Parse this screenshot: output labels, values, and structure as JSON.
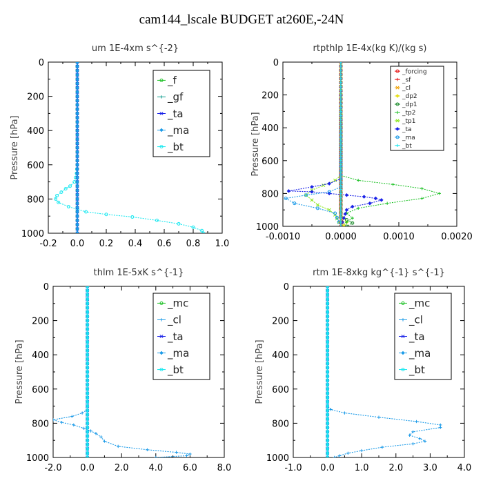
{
  "page": {
    "title": "cam144_lscale  BUDGET at260E,-24N"
  },
  "colors": {
    "green": "#22c22a",
    "teal": "#0a9a8c",
    "blue": "#1a22e8",
    "cyan_blue": "#1a9ae8",
    "cyan": "#1ae8f0",
    "red": "#e81a1a",
    "orange": "#f0a000",
    "yellow": "#e8e01a",
    "dkgreen": "#1a8a2a",
    "lime": "#8ae81a"
  },
  "chart_data": [
    {
      "id": "um",
      "type": "line",
      "title": "um   1E-4xm s^{-2}",
      "ylabel": "Pressure [hPa]",
      "xlabel": "",
      "xlim": [
        -0.2,
        1.0
      ],
      "ylim": [
        1000,
        0
      ],
      "xticks": [
        -0.2,
        0.0,
        0.2,
        0.4,
        0.6,
        0.8,
        1.0
      ],
      "xtick_labels": [
        "-0.2",
        "0.0",
        "0.2",
        "0.4",
        "0.6",
        "0.8",
        "1.0"
      ],
      "yticks": [
        0,
        200,
        400,
        600,
        800,
        1000
      ],
      "ytick_labels": [
        "0",
        "200",
        "400",
        "600",
        "800",
        "1000"
      ],
      "legend_position": "top-right",
      "series": [
        {
          "name": "_f",
          "color_key": "green",
          "points": [
            [
              0,
              0
            ],
            [
              0,
              1000
            ]
          ]
        },
        {
          "name": "_gf",
          "color_key": "teal",
          "points": [
            [
              0,
              0
            ],
            [
              0,
              1000
            ]
          ]
        },
        {
          "name": "_ta",
          "color_key": "blue",
          "points": [
            [
              0,
              0
            ],
            [
              0,
              1000
            ]
          ]
        },
        {
          "name": "_ma",
          "color_key": "cyan_blue",
          "points": [
            [
              0,
              0
            ],
            [
              0,
              1000
            ]
          ]
        },
        {
          "name": "_bt",
          "color_key": "cyan",
          "points": [
            [
              0,
              0
            ],
            [
              0,
              600
            ],
            [
              -0.005,
              650
            ],
            [
              -0.02,
              700
            ],
            [
              -0.05,
              725
            ],
            [
              -0.08,
              740
            ],
            [
              -0.11,
              760
            ],
            [
              -0.14,
              780
            ],
            [
              -0.15,
              800
            ],
            [
              -0.13,
              820
            ],
            [
              -0.06,
              845
            ],
            [
              0.0,
              860
            ],
            [
              0.06,
              875
            ],
            [
              0.2,
              890
            ],
            [
              0.38,
              905
            ],
            [
              0.55,
              925
            ],
            [
              0.7,
              945
            ],
            [
              0.8,
              965
            ],
            [
              0.86,
              985
            ],
            [
              0.87,
              1000
            ]
          ]
        }
      ]
    },
    {
      "id": "rtpthlp",
      "type": "line",
      "title": "rtpthlp   1E-4x(kg K)/(kg s)",
      "ylabel": "Pressure [hPa]",
      "xlabel": "",
      "xlim": [
        -0.001,
        0.002
      ],
      "ylim": [
        1000,
        0
      ],
      "xticks": [
        -0.001,
        0.0,
        0.001,
        0.002
      ],
      "xtick_labels": [
        "-0.0010",
        "0.0000",
        "0.0010",
        "0.0020"
      ],
      "yticks": [
        0,
        200,
        400,
        600,
        800,
        1000
      ],
      "ytick_labels": [
        "0",
        "200",
        "400",
        "600",
        "800",
        "1000"
      ],
      "legend_position": "top-right",
      "series": [
        {
          "name": "_forcing",
          "color_key": "red",
          "points": [
            [
              0,
              0
            ],
            [
              0,
              1000
            ]
          ]
        },
        {
          "name": "_sf",
          "color_key": "red",
          "points": [
            [
              0,
              0
            ],
            [
              0,
              1000
            ]
          ]
        },
        {
          "name": "_cl",
          "color_key": "orange",
          "points": [
            [
              0,
              0
            ],
            [
              0,
              940
            ],
            [
              2e-05,
              960
            ],
            [
              3e-05,
              980
            ],
            [
              2e-05,
              1000
            ]
          ]
        },
        {
          "name": "_dp2",
          "color_key": "yellow",
          "points": [
            [
              0,
              0
            ],
            [
              0,
              920
            ],
            [
              5e-05,
              950
            ],
            [
              0.0001,
              975
            ],
            [
              5e-05,
              1000
            ]
          ]
        },
        {
          "name": "_dp1",
          "color_key": "dkgreen",
          "points": [
            [
              0,
              0
            ],
            [
              0,
              940
            ],
            [
              0.0001,
              960
            ],
            [
              0.0002,
              980
            ],
            [
              0.0001,
              1000
            ]
          ]
        },
        {
          "name": "_tp2",
          "color_key": "green",
          "points": [
            [
              0,
              0
            ],
            [
              0,
              690
            ],
            [
              0.0003,
              720
            ],
            [
              0.0009,
              745
            ],
            [
              0.0014,
              770
            ],
            [
              0.0017,
              800
            ],
            [
              0.0014,
              830
            ],
            [
              0.0008,
              860
            ],
            [
              0.0003,
              890
            ],
            [
              0.0001,
              920
            ],
            [
              0.0002,
              950
            ],
            [
              0.0001,
              975
            ],
            [
              0,
              1000
            ]
          ]
        },
        {
          "name": "_tp1",
          "color_key": "lime",
          "points": [
            [
              0,
              0
            ],
            [
              0,
              690
            ],
            [
              -0.0001,
              720
            ],
            [
              -0.0003,
              750
            ],
            [
              -0.0005,
              780
            ],
            [
              -0.0006,
              810
            ],
            [
              -0.0005,
              840
            ],
            [
              -0.0004,
              870
            ],
            [
              -0.0002,
              900
            ],
            [
              -0.0001,
              930
            ],
            [
              0,
              1000
            ]
          ]
        },
        {
          "name": "_ta",
          "color_key": "blue",
          "points": [
            [
              0,
              0
            ],
            [
              0,
              710
            ],
            [
              -0.0002,
              740
            ],
            [
              -0.0005,
              760
            ],
            [
              -0.0009,
              785
            ],
            [
              -0.0005,
              790
            ],
            [
              -0.0002,
              800
            ],
            [
              0.0001,
              810
            ],
            [
              0.0004,
              820
            ],
            [
              0.0006,
              830
            ],
            [
              0.0007,
              840
            ],
            [
              0.0005,
              860
            ],
            [
              0.0002,
              880
            ],
            [
              0.0001,
              900
            ],
            [
              0,
              1000
            ]
          ]
        },
        {
          "name": "_ma",
          "color_key": "cyan_blue",
          "points": [
            [
              0,
              0
            ],
            [
              0,
              760
            ],
            [
              -0.0002,
              790
            ],
            [
              -0.0006,
              810
            ],
            [
              -0.00095,
              830
            ],
            [
              -0.0008,
              860
            ],
            [
              -0.0004,
              890
            ],
            [
              -0.0001,
              920
            ],
            [
              0,
              1000
            ]
          ]
        },
        {
          "name": "_bt",
          "color_key": "cyan",
          "points": [
            [
              0,
              0
            ],
            [
              0,
              1000
            ]
          ]
        }
      ]
    },
    {
      "id": "thlm",
      "type": "line",
      "title": "thlm   1E-5xK s^{-1}",
      "ylabel": "Pressure [hPa]",
      "xlabel": "",
      "xlim": [
        -2.0,
        8.0
      ],
      "ylim": [
        1000,
        0
      ],
      "xticks": [
        -2.0,
        0.0,
        2.0,
        4.0,
        6.0,
        8.0
      ],
      "xtick_labels": [
        "-2.0",
        "0.0",
        "2.0",
        "4.0",
        "6.0",
        "8.0"
      ],
      "yticks": [
        0,
        200,
        400,
        600,
        800,
        1000
      ],
      "ytick_labels": [
        "0",
        "200",
        "400",
        "600",
        "800",
        "1000"
      ],
      "legend_position": "top-right",
      "series": [
        {
          "name": "_mc",
          "color_key": "green",
          "points": [
            [
              0,
              0
            ],
            [
              0,
              1000
            ]
          ]
        },
        {
          "name": "_cl",
          "color_key": "cyan_blue",
          "points": [
            [
              0,
              0
            ],
            [
              0,
              720
            ],
            [
              -0.3,
              740
            ],
            [
              -0.9,
              760
            ],
            [
              -2.0,
              780
            ],
            [
              -1.5,
              795
            ],
            [
              -0.8,
              810
            ],
            [
              -0.2,
              830
            ],
            [
              0.2,
              845
            ],
            [
              0.5,
              860
            ],
            [
              0.8,
              880
            ],
            [
              1.0,
              905
            ],
            [
              1.8,
              935
            ],
            [
              3.5,
              955
            ],
            [
              5.2,
              970
            ],
            [
              6.0,
              980
            ],
            [
              5.8,
              990
            ],
            [
              4.0,
              1000
            ]
          ]
        },
        {
          "name": "_ta",
          "color_key": "blue",
          "points": [
            [
              0,
              0
            ],
            [
              0,
              1000
            ]
          ]
        },
        {
          "name": "_ma",
          "color_key": "cyan_blue",
          "points": [
            [
              0,
              0
            ],
            [
              0,
              1000
            ]
          ]
        },
        {
          "name": "_bt",
          "color_key": "cyan",
          "points": [
            [
              0,
              0
            ],
            [
              0,
              1000
            ]
          ]
        }
      ]
    },
    {
      "id": "rtm",
      "type": "line",
      "title": "rtm   1E-8xkg kg^{-1} s^{-1}",
      "ylabel": "Pressure [hPa]",
      "xlabel": "",
      "xlim": [
        -1.0,
        4.0
      ],
      "ylim": [
        1000,
        0
      ],
      "xticks": [
        -1.0,
        0.0,
        1.0,
        2.0,
        3.0,
        4.0
      ],
      "xtick_labels": [
        "-1.0",
        "0.0",
        "1.0",
        "2.0",
        "3.0",
        "4.0"
      ],
      "yticks": [
        0,
        200,
        400,
        600,
        800,
        1000
      ],
      "ytick_labels": [
        "0",
        "200",
        "400",
        "600",
        "800",
        "1000"
      ],
      "legend_position": "top-right",
      "series": [
        {
          "name": "_mc",
          "color_key": "green",
          "points": [
            [
              0,
              0
            ],
            [
              0,
              1000
            ]
          ]
        },
        {
          "name": "_cl",
          "color_key": "cyan_blue",
          "points": [
            [
              0,
              0
            ],
            [
              0,
              700
            ],
            [
              0.1,
              720
            ],
            [
              0.5,
              740
            ],
            [
              1.5,
              765
            ],
            [
              2.6,
              790
            ],
            [
              3.3,
              810
            ],
            [
              3.3,
              825
            ],
            [
              2.5,
              850
            ],
            [
              2.4,
              870
            ],
            [
              2.7,
              890
            ],
            [
              2.85,
              905
            ],
            [
              2.5,
              920
            ],
            [
              1.6,
              940
            ],
            [
              1.0,
              960
            ],
            [
              0.6,
              975
            ],
            [
              0.35,
              990
            ],
            [
              0.2,
              1000
            ]
          ]
        },
        {
          "name": "_ta",
          "color_key": "blue",
          "points": [
            [
              0,
              0
            ],
            [
              0,
              1000
            ]
          ]
        },
        {
          "name": "_ma",
          "color_key": "cyan_blue",
          "points": [
            [
              0,
              0
            ],
            [
              0,
              1000
            ]
          ]
        },
        {
          "name": "_bt",
          "color_key": "cyan",
          "points": [
            [
              0,
              0
            ],
            [
              0,
              1000
            ]
          ]
        }
      ]
    }
  ]
}
